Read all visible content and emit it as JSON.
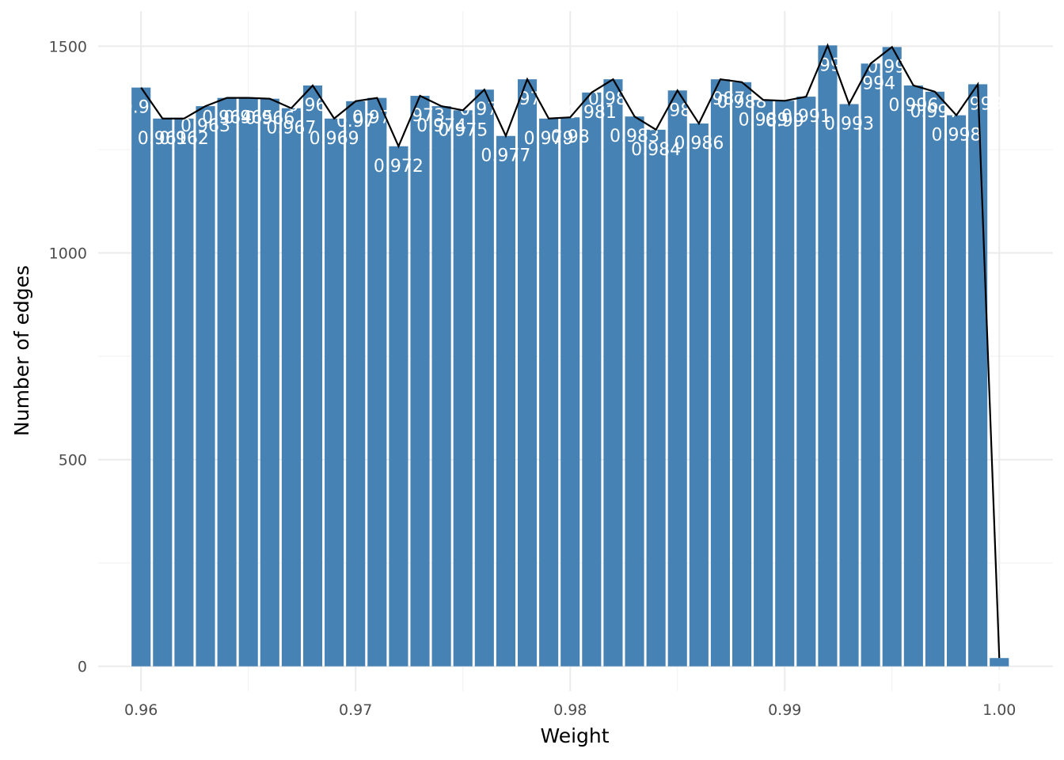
{
  "chart_data": {
    "type": "bar",
    "xlabel": "Weight",
    "ylabel": "Number of edges",
    "xlim": [
      0.958,
      1.0025
    ],
    "ylim": [
      -60,
      1585
    ],
    "x_ticks": [
      "0.96",
      "0.97",
      "0.98",
      "0.99",
      "1.00"
    ],
    "x_tick_values": [
      0.96,
      0.97,
      0.98,
      0.99,
      1.0
    ],
    "y_ticks": [
      "0",
      "500",
      "1000",
      "1500"
    ],
    "y_tick_values": [
      0,
      500,
      1000,
      1500
    ],
    "grid": true,
    "bar_color": "#4682b4",
    "line_color": "#000000",
    "bin_width": 0.001,
    "x": [
      0.96,
      0.961,
      0.962,
      0.963,
      0.964,
      0.965,
      0.966,
      0.967,
      0.968,
      0.969,
      0.97,
      0.971,
      0.972,
      0.973,
      0.974,
      0.975,
      0.976,
      0.977,
      0.978,
      0.979,
      0.98,
      0.981,
      0.982,
      0.983,
      0.984,
      0.985,
      0.986,
      0.987,
      0.988,
      0.989,
      0.99,
      0.991,
      0.992,
      0.993,
      0.994,
      0.995,
      0.996,
      0.997,
      0.998,
      0.999,
      1.0
    ],
    "values": [
      1400,
      1325,
      1325,
      1355,
      1375,
      1375,
      1373,
      1350,
      1405,
      1325,
      1367,
      1375,
      1258,
      1380,
      1355,
      1345,
      1395,
      1283,
      1420,
      1325,
      1328,
      1388,
      1420,
      1330,
      1298,
      1393,
      1313,
      1420,
      1413,
      1370,
      1368,
      1378,
      1502,
      1360,
      1458,
      1498,
      1405,
      1390,
      1333,
      1408,
      20
    ],
    "labels": [
      "0.96",
      "0.961",
      "0.962",
      "0.963",
      "0.964",
      "0.965",
      "0.966",
      "0.967",
      "0.968",
      "0.969",
      "0.97",
      "0.971",
      "0.972",
      "0.973",
      "0.974",
      "0.975",
      "0.976",
      "0.977",
      "0.978",
      "0.979",
      "0.98",
      "0.981",
      "0.982",
      "0.983",
      "0.984",
      "0.985",
      "0.986",
      "0.987",
      "0.988",
      "0.989",
      "0.99",
      "0.991",
      "0.992",
      "0.993",
      "0.994",
      "0.995",
      "0.996",
      "0.997",
      "0.998",
      "0.999",
      "1"
    ]
  }
}
